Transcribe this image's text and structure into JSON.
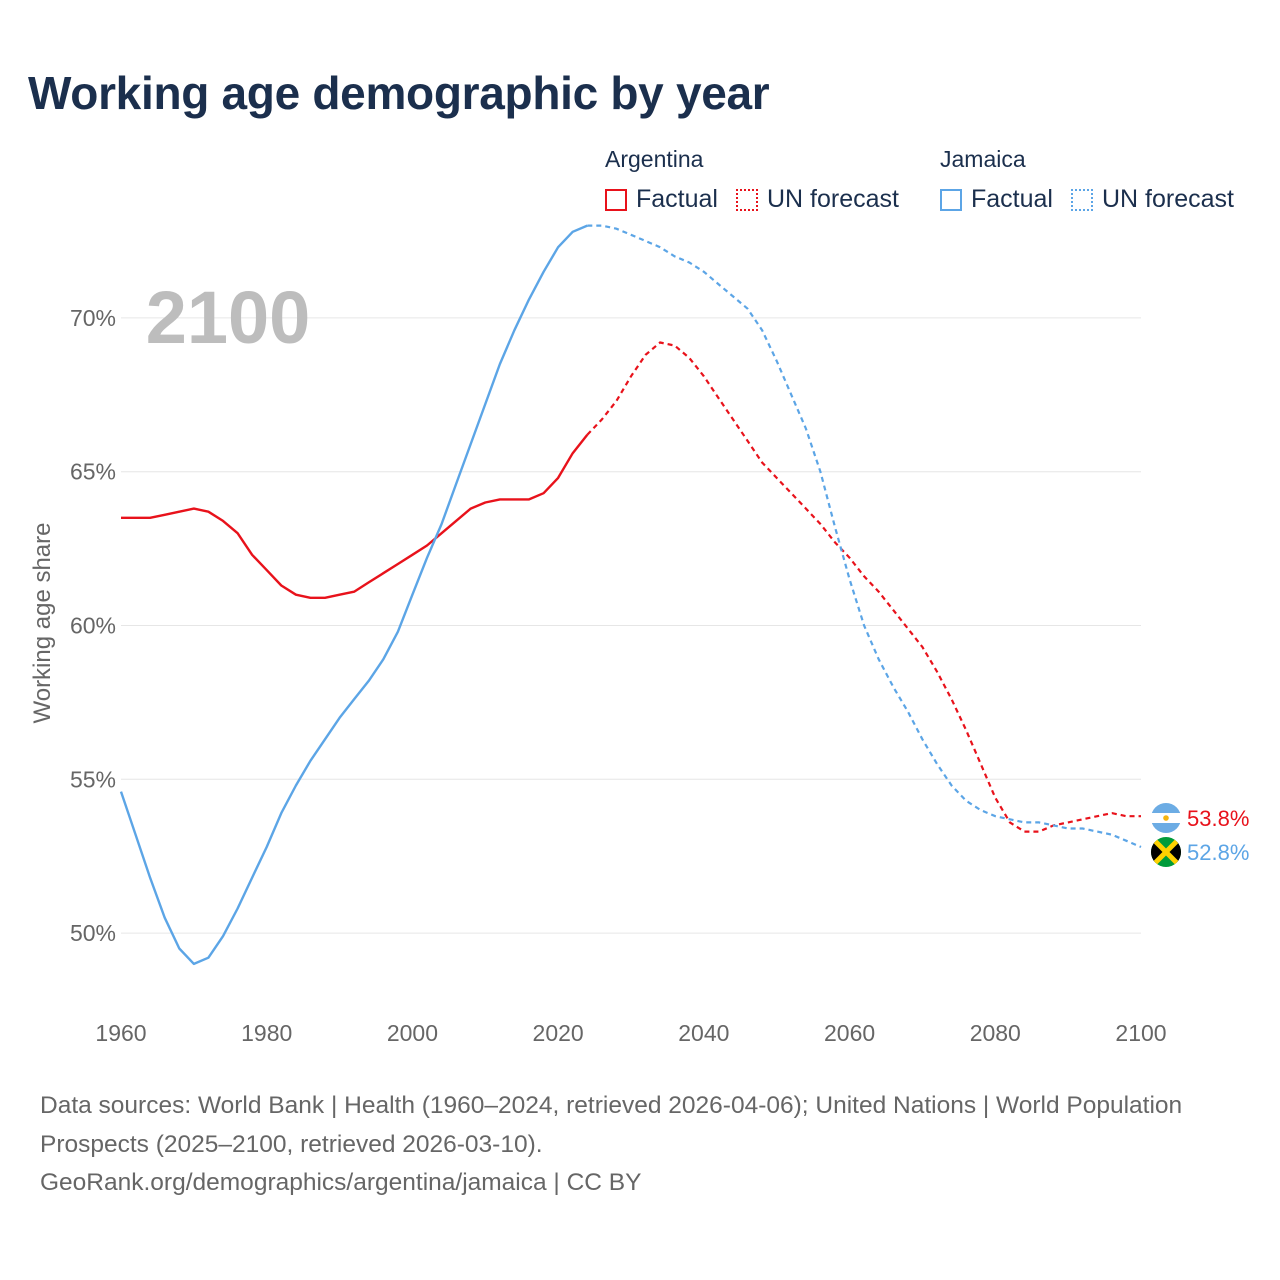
{
  "chart_data": {
    "type": "line",
    "title": "Working age demographic by year",
    "ylabel": "Working age share",
    "xlabel": "",
    "xlim": [
      1960,
      2100
    ],
    "ylim": [
      47.5,
      72.5
    ],
    "x_ticks": [
      1960,
      1980,
      2000,
      2020,
      2040,
      2060,
      2080,
      2100
    ],
    "x_tick_labels": [
      "1960",
      "1980",
      "2000",
      "2020",
      "2040",
      "2060",
      "2080",
      "2100"
    ],
    "y_ticks": [
      50,
      55,
      60,
      65,
      70
    ],
    "y_tick_labels": [
      "50%",
      "55%",
      "60%",
      "65%",
      "70%"
    ],
    "year_watermark": "2100",
    "factual_end_year": 2024,
    "series": [
      {
        "name": "Argentina",
        "color": "#e8121b",
        "end_label": "53.8%",
        "flag": "argentina",
        "points": [
          [
            1960,
            63.5
          ],
          [
            1964,
            63.5
          ],
          [
            1966,
            63.6
          ],
          [
            1968,
            63.7
          ],
          [
            1970,
            63.8
          ],
          [
            1972,
            63.7
          ],
          [
            1974,
            63.4
          ],
          [
            1976,
            63.0
          ],
          [
            1978,
            62.3
          ],
          [
            1980,
            61.8
          ],
          [
            1982,
            61.3
          ],
          [
            1984,
            61.0
          ],
          [
            1986,
            60.9
          ],
          [
            1988,
            60.9
          ],
          [
            1990,
            61.0
          ],
          [
            1992,
            61.1
          ],
          [
            1994,
            61.4
          ],
          [
            1996,
            61.7
          ],
          [
            1998,
            62.0
          ],
          [
            2000,
            62.3
          ],
          [
            2002,
            62.6
          ],
          [
            2004,
            63.0
          ],
          [
            2006,
            63.4
          ],
          [
            2008,
            63.8
          ],
          [
            2010,
            64.0
          ],
          [
            2012,
            64.1
          ],
          [
            2014,
            64.1
          ],
          [
            2016,
            64.1
          ],
          [
            2018,
            64.3
          ],
          [
            2020,
            64.8
          ],
          [
            2022,
            65.6
          ],
          [
            2024,
            66.2
          ],
          [
            2026,
            66.7
          ],
          [
            2028,
            67.3
          ],
          [
            2030,
            68.1
          ],
          [
            2032,
            68.8
          ],
          [
            2034,
            69.2
          ],
          [
            2036,
            69.1
          ],
          [
            2038,
            68.7
          ],
          [
            2040,
            68.1
          ],
          [
            2042,
            67.4
          ],
          [
            2044,
            66.7
          ],
          [
            2046,
            66.0
          ],
          [
            2048,
            65.3
          ],
          [
            2050,
            64.8
          ],
          [
            2052,
            64.3
          ],
          [
            2054,
            63.8
          ],
          [
            2056,
            63.3
          ],
          [
            2058,
            62.7
          ],
          [
            2060,
            62.2
          ],
          [
            2062,
            61.6
          ],
          [
            2064,
            61.1
          ],
          [
            2066,
            60.5
          ],
          [
            2068,
            59.9
          ],
          [
            2070,
            59.3
          ],
          [
            2072,
            58.5
          ],
          [
            2074,
            57.6
          ],
          [
            2076,
            56.6
          ],
          [
            2078,
            55.5
          ],
          [
            2080,
            54.4
          ],
          [
            2082,
            53.6
          ],
          [
            2084,
            53.3
          ],
          [
            2086,
            53.3
          ],
          [
            2088,
            53.5
          ],
          [
            2090,
            53.6
          ],
          [
            2092,
            53.7
          ],
          [
            2094,
            53.8
          ],
          [
            2096,
            53.9
          ],
          [
            2098,
            53.8
          ],
          [
            2100,
            53.8
          ]
        ]
      },
      {
        "name": "Jamaica",
        "color": "#5ca5e6",
        "end_label": "52.8%",
        "flag": "jamaica",
        "points": [
          [
            1960,
            54.6
          ],
          [
            1962,
            53.2
          ],
          [
            1964,
            51.8
          ],
          [
            1966,
            50.5
          ],
          [
            1968,
            49.5
          ],
          [
            1970,
            49.0
          ],
          [
            1972,
            49.2
          ],
          [
            1974,
            49.9
          ],
          [
            1976,
            50.8
          ],
          [
            1978,
            51.8
          ],
          [
            1980,
            52.8
          ],
          [
            1982,
            53.9
          ],
          [
            1984,
            54.8
          ],
          [
            1986,
            55.6
          ],
          [
            1988,
            56.3
          ],
          [
            1990,
            57.0
          ],
          [
            1992,
            57.6
          ],
          [
            1994,
            58.2
          ],
          [
            1996,
            58.9
          ],
          [
            1998,
            59.8
          ],
          [
            2000,
            61.0
          ],
          [
            2002,
            62.2
          ],
          [
            2004,
            63.3
          ],
          [
            2006,
            64.6
          ],
          [
            2008,
            65.9
          ],
          [
            2010,
            67.2
          ],
          [
            2012,
            68.5
          ],
          [
            2014,
            69.6
          ],
          [
            2016,
            70.6
          ],
          [
            2018,
            71.5
          ],
          [
            2020,
            72.3
          ],
          [
            2022,
            72.8
          ],
          [
            2024,
            73.0
          ],
          [
            2026,
            73.0
          ],
          [
            2028,
            72.9
          ],
          [
            2030,
            72.7
          ],
          [
            2032,
            72.5
          ],
          [
            2034,
            72.3
          ],
          [
            2036,
            72.0
          ],
          [
            2038,
            71.8
          ],
          [
            2040,
            71.5
          ],
          [
            2042,
            71.1
          ],
          [
            2044,
            70.7
          ],
          [
            2046,
            70.3
          ],
          [
            2048,
            69.6
          ],
          [
            2050,
            68.6
          ],
          [
            2052,
            67.5
          ],
          [
            2054,
            66.4
          ],
          [
            2056,
            65.0
          ],
          [
            2058,
            63.2
          ],
          [
            2060,
            61.5
          ],
          [
            2062,
            60.0
          ],
          [
            2064,
            58.9
          ],
          [
            2066,
            58.0
          ],
          [
            2068,
            57.2
          ],
          [
            2070,
            56.3
          ],
          [
            2072,
            55.5
          ],
          [
            2074,
            54.8
          ],
          [
            2076,
            54.3
          ],
          [
            2078,
            54.0
          ],
          [
            2080,
            53.8
          ],
          [
            2082,
            53.7
          ],
          [
            2084,
            53.6
          ],
          [
            2086,
            53.6
          ],
          [
            2088,
            53.5
          ],
          [
            2090,
            53.4
          ],
          [
            2092,
            53.4
          ],
          [
            2094,
            53.3
          ],
          [
            2096,
            53.2
          ],
          [
            2098,
            53.0
          ],
          [
            2100,
            52.8
          ]
        ]
      }
    ]
  },
  "legend": {
    "groups": [
      {
        "country": "Argentina",
        "factual_label": "Factual",
        "forecast_label": "UN forecast"
      },
      {
        "country": "Jamaica",
        "factual_label": "Factual",
        "forecast_label": "UN forecast"
      }
    ]
  },
  "colors": {
    "title": "#1b2f4d",
    "grid": "#e6e6e6",
    "axis_text": "#666666",
    "watermark": "#bdbdbd"
  },
  "footer": {
    "sources": "Data sources: World Bank | Health (1960–2024, retrieved 2026-04-06); United Nations | World Population Prospects (2025–2100, retrieved 2026-03-10).",
    "url_license": "GeoRank.org/demographics/argentina/jamaica | CC BY"
  }
}
